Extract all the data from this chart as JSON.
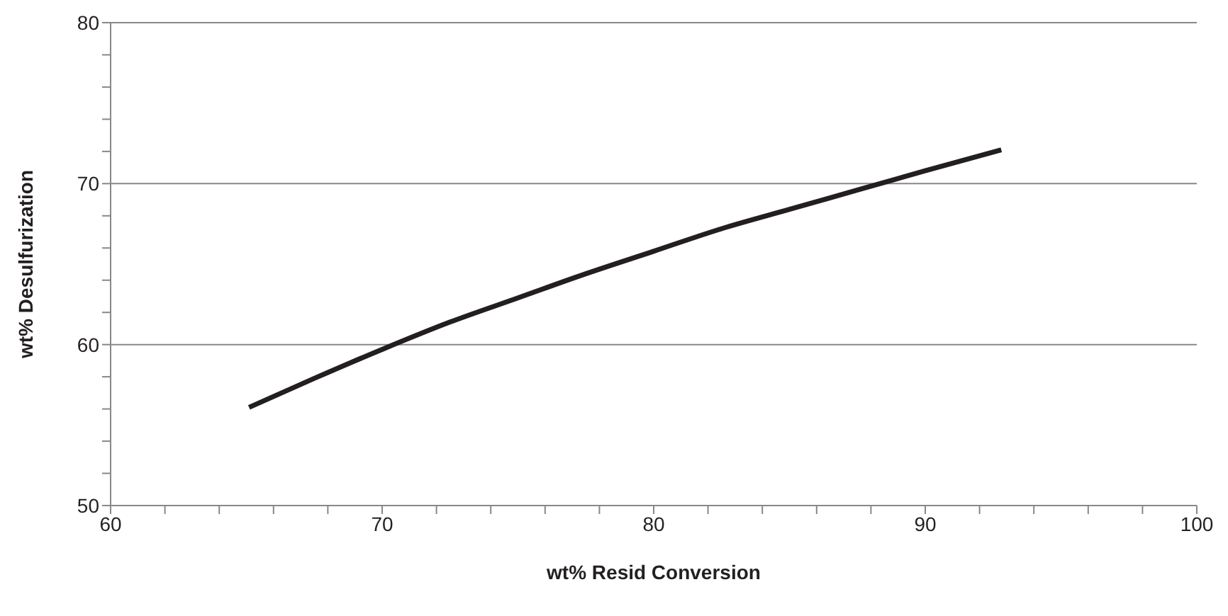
{
  "chart_data": {
    "type": "line",
    "xlabel": "wt% Resid Conversion",
    "ylabel": "wt%  Desulfurization",
    "x": [
      65.1,
      67.5,
      70,
      72.5,
      75,
      77.5,
      80,
      82.5,
      85,
      87.5,
      90,
      92.8
    ],
    "series": [
      {
        "color": "#231f20",
        "values": [
          56.1,
          57.9,
          59.7,
          61.4,
          62.9,
          64.4,
          65.8,
          67.2,
          68.4,
          69.6,
          70.8,
          72.1
        ]
      }
    ],
    "xlim": [
      60,
      100
    ],
    "ylim": [
      50,
      80
    ],
    "xticks": [
      60,
      {
        "value": 62,
        "label": null
      },
      {
        "value": 64,
        "label": null
      },
      {
        "value": 66,
        "label": null
      },
      {
        "value": 68,
        "label": null
      },
      70,
      {
        "value": 72,
        "label": null
      },
      {
        "value": 74,
        "label": null
      },
      {
        "value": 76,
        "label": null
      },
      {
        "value": 78,
        "label": null
      },
      80,
      {
        "value": 82,
        "label": null
      },
      {
        "value": 84,
        "label": null
      },
      {
        "value": 86,
        "label": null
      },
      {
        "value": 88,
        "label": null
      },
      90,
      {
        "value": 92,
        "label": null
      },
      {
        "value": 94,
        "label": null
      },
      {
        "value": 96,
        "label": null
      },
      {
        "value": 98,
        "label": null
      },
      100
    ],
    "yticks": [
      50,
      {
        "value": 52,
        "label": null
      },
      {
        "value": 54,
        "label": null
      },
      {
        "value": 56,
        "label": null
      },
      {
        "value": 58,
        "label": null
      },
      60,
      {
        "value": 62,
        "label": null
      },
      {
        "value": 64,
        "label": null
      },
      {
        "value": 66,
        "label": null
      },
      {
        "value": 68,
        "label": null
      },
      70,
      {
        "value": 72,
        "label": null
      },
      {
        "value": 74,
        "label": null
      },
      {
        "value": 76,
        "label": null
      },
      {
        "value": 78,
        "label": null
      },
      80
    ],
    "grid": "y",
    "marker": "none",
    "line_style": "solid"
  }
}
